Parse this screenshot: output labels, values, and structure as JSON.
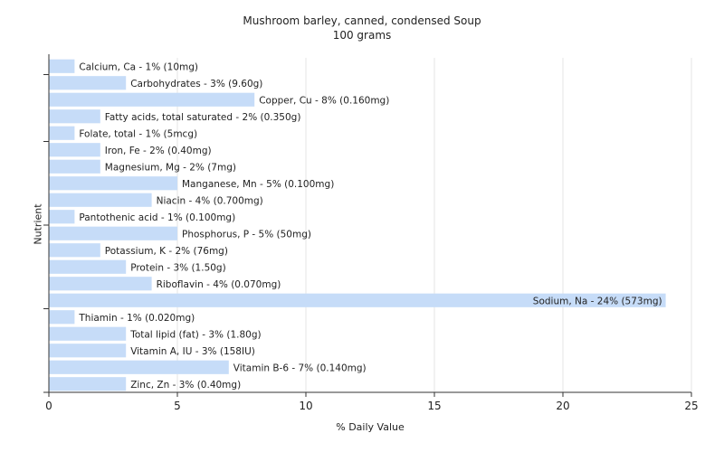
{
  "chart_data": {
    "type": "bar",
    "orientation": "horizontal",
    "title": "Mushroom barley, canned, condensed Soup",
    "subtitle": "100 grams",
    "xlabel": "% Daily Value",
    "ylabel": "Nutrient",
    "xlim": [
      0,
      25
    ],
    "xticks": [
      0,
      5,
      10,
      15,
      20,
      25
    ],
    "grid": true,
    "bar_color": "#c6dcf8",
    "categories": [
      "Calcium, Ca - 1% (10mg)",
      "Carbohydrates - 3% (9.60g)",
      "Copper, Cu - 8% (0.160mg)",
      "Fatty acids, total saturated - 2% (0.350g)",
      "Folate, total - 1% (5mcg)",
      "Iron, Fe - 2% (0.40mg)",
      "Magnesium, Mg - 2% (7mg)",
      "Manganese, Mn - 5% (0.100mg)",
      "Niacin - 4% (0.700mg)",
      "Pantothenic acid - 1% (0.100mg)",
      "Phosphorus, P - 5% (50mg)",
      "Potassium, K - 2% (76mg)",
      "Protein - 3% (1.50g)",
      "Riboflavin - 4% (0.070mg)",
      "Sodium, Na - 24% (573mg)",
      "Thiamin - 1% (0.020mg)",
      "Total lipid (fat) - 3% (1.80g)",
      "Vitamin A, IU - 3% (158IU)",
      "Vitamin B-6 - 7% (0.140mg)",
      "Zinc, Zn - 3% (0.40mg)"
    ],
    "values": [
      1,
      3,
      8,
      2,
      1,
      2,
      2,
      5,
      4,
      1,
      5,
      2,
      3,
      4,
      24,
      1,
      3,
      3,
      7,
      3
    ]
  }
}
